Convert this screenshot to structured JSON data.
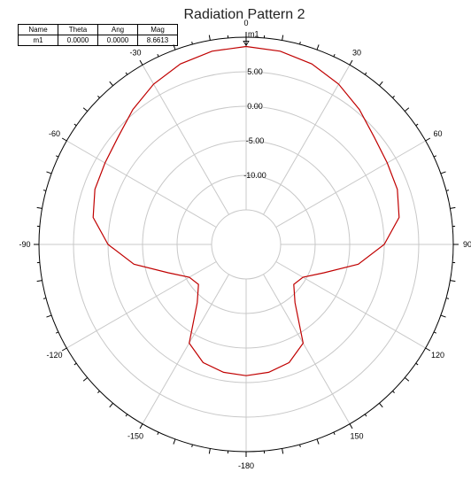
{
  "chart_data": {
    "type": "line",
    "subtype": "polar",
    "title": "Radiation Pattern 2",
    "rings": [
      "-10.00",
      "-5.00",
      "0.00",
      "5.00"
    ],
    "r_range": [
      -20,
      10
    ],
    "angle_labels": [
      "0",
      "30",
      "60",
      "90",
      "120",
      "150",
      "-180",
      "-150",
      "-120",
      "-90",
      "-60",
      "-30"
    ],
    "series": [
      {
        "color": "#c00000",
        "theta": [
          0,
          10,
          20,
          30,
          40,
          50,
          60,
          70,
          80,
          90,
          100,
          110,
          120,
          130,
          140,
          150,
          160,
          170,
          180,
          -170,
          -160,
          -150,
          -140,
          -130,
          -120,
          -110,
          -100,
          -90,
          -80,
          -70,
          -60,
          -50,
          -40,
          -30,
          -20,
          -10,
          0
        ],
        "r": [
          8.66,
          8.4,
          7.8,
          6.8,
          5.5,
          4.2,
          3.6,
          3.3,
          2.5,
          0.0,
          -3.5,
          -8.0,
          -10.5,
          -11.0,
          -9.0,
          -3.5,
          -1.8,
          -1.2,
          -1.0,
          -1.2,
          -1.8,
          -3.5,
          -9.0,
          -11.0,
          -10.5,
          -8.0,
          -3.5,
          0.0,
          2.5,
          3.3,
          3.6,
          4.2,
          5.5,
          6.8,
          7.8,
          8.4,
          8.66
        ]
      }
    ],
    "marker_table": {
      "headers": [
        "Name",
        "Theta",
        "Ang",
        "Mag"
      ],
      "rows": [
        [
          "m1",
          "0.0000",
          "0.0000",
          "8.6613"
        ]
      ]
    },
    "marker_label": "m1",
    "grid": true
  }
}
